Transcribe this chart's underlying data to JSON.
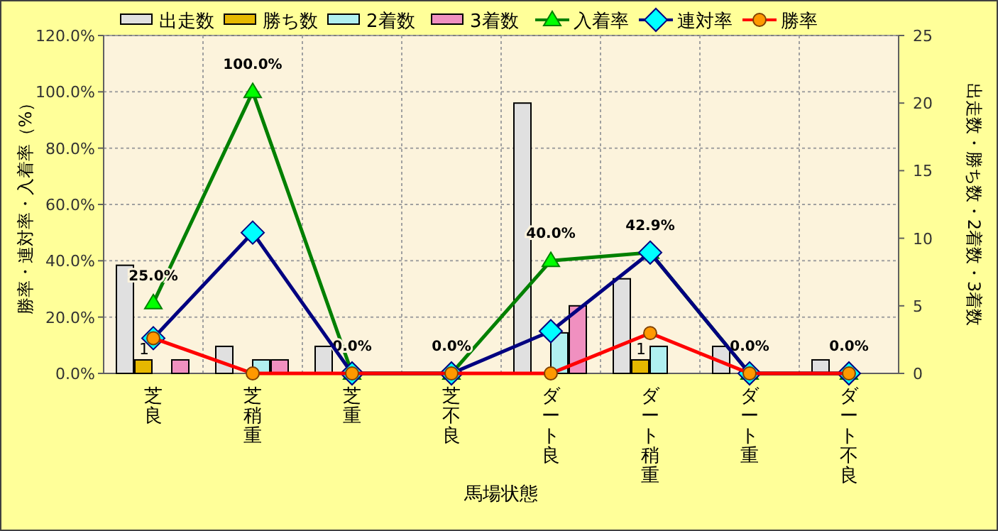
{
  "chart_data": {
    "type": "bar",
    "xlabel": "馬場状態",
    "ylabel": "勝率・連対率・入着率（%）",
    "y2label": "出走数・勝ち数・2着数・3着数",
    "categories": [
      "芝良",
      "芝稍重",
      "芝重",
      "芝不良",
      "ダート良",
      "ダート稍重",
      "ダート重",
      "ダート不良"
    ],
    "series": [
      {
        "name": "出走数",
        "type": "bar",
        "axis": "y2",
        "color": "#e0e0e0",
        "values": [
          8,
          2,
          2,
          0,
          20,
          7,
          2,
          1
        ]
      },
      {
        "name": "勝ち数",
        "type": "bar",
        "axis": "y2",
        "color": "#e6b800",
        "values": [
          1,
          0,
          0,
          0,
          0,
          1,
          0,
          0
        ],
        "value_labels": [
          "1",
          null,
          null,
          null,
          null,
          "1",
          null,
          null
        ]
      },
      {
        "name": "2着数",
        "type": "bar",
        "axis": "y2",
        "color": "#b0f0f0",
        "values": [
          0,
          1,
          0,
          0,
          3,
          2,
          0,
          0
        ]
      },
      {
        "name": "3着数",
        "type": "bar",
        "axis": "y2",
        "color": "#f090c0",
        "values": [
          1,
          1,
          0,
          0,
          5,
          0,
          0,
          0
        ]
      },
      {
        "name": "入着率",
        "type": "line",
        "color": "#008000",
        "marker": "triangle",
        "values": [
          25,
          100,
          0,
          0,
          40,
          42.9,
          0,
          0
        ],
        "value_labels": [
          "25.0%",
          "100.0%",
          "0.0%",
          "0.0%",
          "40.0%",
          "42.9%",
          "0.0%",
          "0.0%"
        ]
      },
      {
        "name": "連対率",
        "type": "line",
        "color": "#000080",
        "marker": "diamond",
        "values": [
          12.5,
          50,
          0,
          0,
          15,
          42.9,
          0,
          0
        ]
      },
      {
        "name": "勝率",
        "type": "line",
        "color": "#ff0000",
        "marker": "circle",
        "values": [
          12.5,
          0,
          0,
          0,
          0,
          14.3,
          0,
          0
        ]
      }
    ],
    "ylim": [
      0,
      120
    ],
    "yticks": [
      {
        "value": 0,
        "label": "0.0%"
      },
      {
        "value": 20,
        "label": "20.0%"
      },
      {
        "value": 40,
        "label": "40.0%"
      },
      {
        "value": 60,
        "label": "60.0%"
      },
      {
        "value": 80,
        "label": "80.0%"
      },
      {
        "value": 100,
        "label": "100.0%"
      },
      {
        "value": 120,
        "label": "120.0%"
      }
    ],
    "y2lim": [
      0,
      25
    ],
    "y2ticks": [
      0,
      5,
      10,
      15,
      20,
      25
    ],
    "grid": true,
    "legend": "top"
  }
}
